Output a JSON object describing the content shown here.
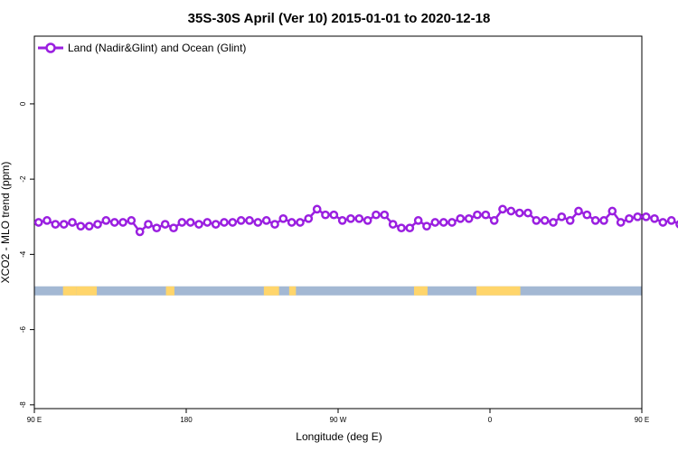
{
  "chart_data": {
    "type": "line",
    "title": "35S-30S April (Ver 10)   2015-01-01 to 2020-12-18",
    "xlabel": "Longitude (deg E)",
    "ylabel": "XCO2 - MLO trend (ppm)",
    "xlim": [
      90,
      450
    ],
    "ylim": [
      -8.1,
      1.8
    ],
    "x_ticks": [
      {
        "value": 90,
        "label": "90 E"
      },
      {
        "value": 180,
        "label": "180"
      },
      {
        "value": 270,
        "label": "90 W"
      },
      {
        "value": 360,
        "label": "0"
      },
      {
        "value": 450,
        "label": "90 E"
      },
      {
        "value": 540,
        "label": "180"
      }
    ],
    "y_ticks": [
      {
        "value": 0,
        "label": "0"
      },
      {
        "value": -2,
        "label": "-2"
      },
      {
        "value": -4,
        "label": "-4"
      },
      {
        "value": -6,
        "label": "-6"
      },
      {
        "value": -8,
        "label": "-8"
      }
    ],
    "legend": {
      "placement": "top-left"
    },
    "series": [
      {
        "name": "Land (Nadir&Glint) and Ocean (Glint)",
        "color": "#9a1fe0",
        "x_start": 92.5,
        "x_step": 5,
        "values": [
          -3.15,
          -3.1,
          -3.2,
          -3.2,
          -3.15,
          -3.25,
          -3.25,
          -3.2,
          -3.1,
          -3.15,
          -3.15,
          -3.1,
          -3.4,
          -3.2,
          -3.3,
          -3.2,
          -3.3,
          -3.15,
          -3.15,
          -3.2,
          -3.15,
          -3.2,
          -3.15,
          -3.15,
          -3.1,
          -3.1,
          -3.15,
          -3.1,
          -3.2,
          -3.05,
          -3.15,
          -3.15,
          -3.05,
          -2.8,
          -2.95,
          -2.95,
          -3.1,
          -3.05,
          -3.05,
          -3.1,
          -2.95,
          -2.95,
          -3.2,
          -3.3,
          -3.3,
          -3.1,
          -3.25,
          -3.15,
          -3.15,
          -3.15,
          -3.05,
          -3.05,
          -2.95,
          -2.95,
          -3.1,
          -2.8,
          -2.85,
          -2.9,
          -2.9,
          -3.1,
          -3.1,
          -3.15,
          -3.0,
          -3.1,
          -2.85,
          -2.95,
          -3.1,
          -3.1,
          -2.85,
          -3.15,
          -3.05,
          -3.0,
          -3.0,
          -3.05,
          -3.15,
          -3.1,
          -3.2,
          -3.2,
          -3.1,
          -3.25,
          -3.25,
          -3.25,
          -3.1,
          -3.15,
          -3.15,
          -3.15,
          -3.4,
          -3.2,
          -3.25,
          -3.2,
          -3.25,
          -3.15
        ]
      }
    ],
    "surface_strip": {
      "y_center": -4.97,
      "ocean_color": "#a3b8d3",
      "land_color": "#ffd56b",
      "land_spans": [
        [
          107,
          115
        ],
        [
          115,
          127
        ],
        [
          168,
          173
        ],
        [
          226,
          235
        ],
        [
          241,
          245
        ],
        [
          315,
          323
        ],
        [
          352,
          378
        ]
      ]
    }
  }
}
